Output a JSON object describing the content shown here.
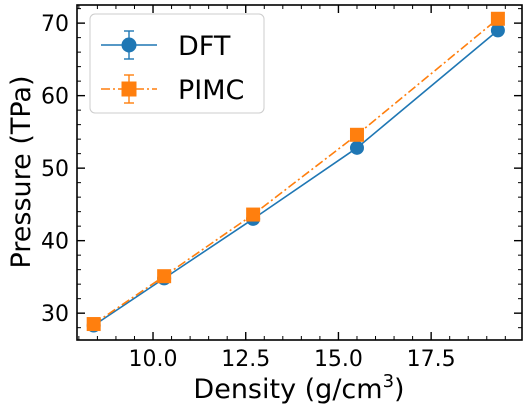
{
  "chart_data": {
    "type": "line",
    "xlabel": "Density (g/cm",
    "xlabel_sup": "3",
    "xlabel_close": ")",
    "ylabel": "Pressure (TPa)",
    "xlim": [
      7.95,
      19.95
    ],
    "ylim": [
      26.3,
      72.5
    ],
    "xticks": [
      10.0,
      12.5,
      15.0,
      17.5
    ],
    "xtick_labels": [
      "10.0",
      "12.5",
      "15.0",
      "17.5"
    ],
    "yticks": [
      30,
      40,
      50,
      60,
      70
    ],
    "ytick_labels": [
      "30",
      "40",
      "50",
      "60",
      "70"
    ],
    "legend_position": "top-left",
    "grid": false,
    "series": [
      {
        "name": "DFT",
        "color": "#1f77b4",
        "marker": "circle",
        "linestyle": "solid",
        "x": [
          8.4,
          10.3,
          12.7,
          15.5,
          19.3
        ],
        "y": [
          28.3,
          34.8,
          43.0,
          52.8,
          69.0
        ]
      },
      {
        "name": "PIMC",
        "color": "#ff7f0e",
        "marker": "square",
        "linestyle": "dashdot",
        "x": [
          8.4,
          10.3,
          12.7,
          15.5,
          19.3
        ],
        "y": [
          28.5,
          35.1,
          43.6,
          54.6,
          70.6
        ]
      }
    ]
  }
}
